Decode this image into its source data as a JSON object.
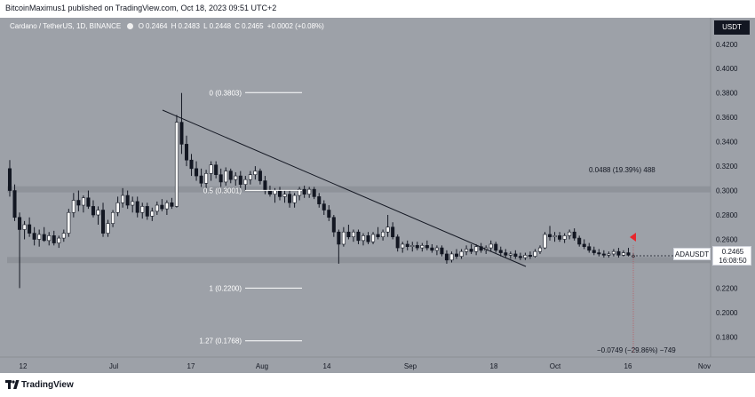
{
  "header": {
    "publish_text": "BitcoinMaximus1 published on TradingView.com, Oct 18, 2023 09:51 UTC+2"
  },
  "symbol": {
    "name": "Cardano / TetherUS, 1D, BINANCE",
    "o_label": "O",
    "o_value": "0.2464",
    "h_label": "H",
    "h_value": "0.2483",
    "l_label": "L",
    "l_value": "0.2448",
    "c_label": "C",
    "c_value": "0.2465",
    "change": "+0.0002 (+0.08%)"
  },
  "price_axis": {
    "currency": "USDT",
    "ticks": [
      "0.4200",
      "0.4000",
      "0.3800",
      "0.3600",
      "0.3400",
      "0.3200",
      "0.3000",
      "0.2800",
      "0.2600",
      "0.2200",
      "0.2000",
      "0.1800"
    ]
  },
  "time_axis": {
    "ticks": [
      "12",
      "Jul",
      "17",
      "Aug",
      "14",
      "Sep",
      "18",
      "Oct",
      "16",
      "Nov"
    ]
  },
  "fib": {
    "levels": [
      {
        "label": "0 (0.3803)",
        "price": 0.3803
      },
      {
        "label": "0.5 (0.3001)",
        "price": 0.3001
      },
      {
        "label": "1 (0.2200)",
        "price": 0.22
      },
      {
        "label": "1.27 (0.1768)",
        "price": 0.1768
      }
    ]
  },
  "measure": {
    "up_text": "0.0488 (19.39%) 488",
    "down_text": "−0.0749 (−29.86%) −749"
  },
  "current": {
    "symbol_label": "ADAUSDT",
    "price": "0.2465",
    "countdown": "16:08:50"
  },
  "footer": {
    "brand": "TradingView"
  },
  "colors": {
    "background": "#9da1a8",
    "zone": "#8d9198",
    "candle_up": "#ffffff",
    "candle_down": "#131722",
    "arrow": "#e8262c"
  },
  "chart_data": {
    "type": "candlestick",
    "ylim": [
      0.16,
      0.43
    ],
    "horizontal_zones": [
      {
        "low": 0.2985,
        "high": 0.3035
      },
      {
        "low": 0.2405,
        "high": 0.2455
      }
    ],
    "candles": [
      {
        "o": 0.318,
        "h": 0.325,
        "l": 0.295,
        "c": 0.3
      },
      {
        "o": 0.3,
        "h": 0.305,
        "l": 0.275,
        "c": 0.278
      },
      {
        "o": 0.278,
        "h": 0.282,
        "l": 0.22,
        "c": 0.268
      },
      {
        "o": 0.268,
        "h": 0.275,
        "l": 0.26,
        "c": 0.272
      },
      {
        "o": 0.272,
        "h": 0.278,
        "l": 0.262,
        "c": 0.265
      },
      {
        "o": 0.265,
        "h": 0.27,
        "l": 0.255,
        "c": 0.26
      },
      {
        "o": 0.26,
        "h": 0.268,
        "l": 0.254,
        "c": 0.264
      },
      {
        "o": 0.264,
        "h": 0.27,
        "l": 0.258,
        "c": 0.259
      },
      {
        "o": 0.259,
        "h": 0.266,
        "l": 0.255,
        "c": 0.263
      },
      {
        "o": 0.263,
        "h": 0.267,
        "l": 0.255,
        "c": 0.257
      },
      {
        "o": 0.257,
        "h": 0.263,
        "l": 0.253,
        "c": 0.261
      },
      {
        "o": 0.261,
        "h": 0.268,
        "l": 0.258,
        "c": 0.265
      },
      {
        "o": 0.265,
        "h": 0.285,
        "l": 0.262,
        "c": 0.282
      },
      {
        "o": 0.282,
        "h": 0.298,
        "l": 0.278,
        "c": 0.292
      },
      {
        "o": 0.292,
        "h": 0.3,
        "l": 0.283,
        "c": 0.288
      },
      {
        "o": 0.288,
        "h": 0.296,
        "l": 0.282,
        "c": 0.294
      },
      {
        "o": 0.294,
        "h": 0.3,
        "l": 0.285,
        "c": 0.287
      },
      {
        "o": 0.287,
        "h": 0.292,
        "l": 0.278,
        "c": 0.28
      },
      {
        "o": 0.28,
        "h": 0.287,
        "l": 0.272,
        "c": 0.284
      },
      {
        "o": 0.284,
        "h": 0.29,
        "l": 0.262,
        "c": 0.265
      },
      {
        "o": 0.265,
        "h": 0.276,
        "l": 0.262,
        "c": 0.273
      },
      {
        "o": 0.273,
        "h": 0.284,
        "l": 0.27,
        "c": 0.282
      },
      {
        "o": 0.282,
        "h": 0.295,
        "l": 0.279,
        "c": 0.29
      },
      {
        "o": 0.29,
        "h": 0.302,
        "l": 0.286,
        "c": 0.296
      },
      {
        "o": 0.296,
        "h": 0.3,
        "l": 0.285,
        "c": 0.288
      },
      {
        "o": 0.288,
        "h": 0.295,
        "l": 0.282,
        "c": 0.291
      },
      {
        "o": 0.291,
        "h": 0.295,
        "l": 0.278,
        "c": 0.282
      },
      {
        "o": 0.282,
        "h": 0.29,
        "l": 0.277,
        "c": 0.287
      },
      {
        "o": 0.287,
        "h": 0.29,
        "l": 0.276,
        "c": 0.279
      },
      {
        "o": 0.279,
        "h": 0.286,
        "l": 0.275,
        "c": 0.283
      },
      {
        "o": 0.283,
        "h": 0.291,
        "l": 0.28,
        "c": 0.288
      },
      {
        "o": 0.288,
        "h": 0.293,
        "l": 0.283,
        "c": 0.285
      },
      {
        "o": 0.285,
        "h": 0.292,
        "l": 0.28,
        "c": 0.29
      },
      {
        "o": 0.29,
        "h": 0.294,
        "l": 0.285,
        "c": 0.287
      },
      {
        "o": 0.287,
        "h": 0.362,
        "l": 0.286,
        "c": 0.356
      },
      {
        "o": 0.356,
        "h": 0.38,
        "l": 0.33,
        "c": 0.338
      },
      {
        "o": 0.338,
        "h": 0.345,
        "l": 0.32,
        "c": 0.325
      },
      {
        "o": 0.325,
        "h": 0.33,
        "l": 0.312,
        "c": 0.318
      },
      {
        "o": 0.318,
        "h": 0.324,
        "l": 0.308,
        "c": 0.312
      },
      {
        "o": 0.312,
        "h": 0.318,
        "l": 0.303,
        "c": 0.306
      },
      {
        "o": 0.306,
        "h": 0.317,
        "l": 0.302,
        "c": 0.314
      },
      {
        "o": 0.314,
        "h": 0.324,
        "l": 0.308,
        "c": 0.321
      },
      {
        "o": 0.321,
        "h": 0.324,
        "l": 0.31,
        "c": 0.313
      },
      {
        "o": 0.313,
        "h": 0.318,
        "l": 0.303,
        "c": 0.307
      },
      {
        "o": 0.307,
        "h": 0.319,
        "l": 0.304,
        "c": 0.316
      },
      {
        "o": 0.316,
        "h": 0.318,
        "l": 0.306,
        "c": 0.309
      },
      {
        "o": 0.309,
        "h": 0.315,
        "l": 0.304,
        "c": 0.312
      },
      {
        "o": 0.312,
        "h": 0.316,
        "l": 0.302,
        "c": 0.305
      },
      {
        "o": 0.305,
        "h": 0.312,
        "l": 0.3,
        "c": 0.309
      },
      {
        "o": 0.309,
        "h": 0.316,
        "l": 0.305,
        "c": 0.313
      },
      {
        "o": 0.313,
        "h": 0.32,
        "l": 0.309,
        "c": 0.316
      },
      {
        "o": 0.316,
        "h": 0.318,
        "l": 0.305,
        "c": 0.308
      },
      {
        "o": 0.308,
        "h": 0.312,
        "l": 0.297,
        "c": 0.3
      },
      {
        "o": 0.3,
        "h": 0.304,
        "l": 0.295,
        "c": 0.297
      },
      {
        "o": 0.297,
        "h": 0.302,
        "l": 0.29,
        "c": 0.3
      },
      {
        "o": 0.3,
        "h": 0.303,
        "l": 0.292,
        "c": 0.295
      },
      {
        "o": 0.295,
        "h": 0.3,
        "l": 0.29,
        "c": 0.297
      },
      {
        "o": 0.297,
        "h": 0.3,
        "l": 0.286,
        "c": 0.29
      },
      {
        "o": 0.29,
        "h": 0.298,
        "l": 0.286,
        "c": 0.296
      },
      {
        "o": 0.296,
        "h": 0.303,
        "l": 0.292,
        "c": 0.301
      },
      {
        "o": 0.301,
        "h": 0.304,
        "l": 0.294,
        "c": 0.297
      },
      {
        "o": 0.297,
        "h": 0.303,
        "l": 0.294,
        "c": 0.301
      },
      {
        "o": 0.301,
        "h": 0.303,
        "l": 0.293,
        "c": 0.295
      },
      {
        "o": 0.295,
        "h": 0.298,
        "l": 0.286,
        "c": 0.289
      },
      {
        "o": 0.289,
        "h": 0.292,
        "l": 0.28,
        "c": 0.284
      },
      {
        "o": 0.284,
        "h": 0.288,
        "l": 0.275,
        "c": 0.278
      },
      {
        "o": 0.278,
        "h": 0.28,
        "l": 0.262,
        "c": 0.266
      },
      {
        "o": 0.266,
        "h": 0.268,
        "l": 0.24,
        "c": 0.256
      },
      {
        "o": 0.256,
        "h": 0.27,
        "l": 0.254,
        "c": 0.266
      },
      {
        "o": 0.266,
        "h": 0.272,
        "l": 0.26,
        "c": 0.262
      },
      {
        "o": 0.262,
        "h": 0.268,
        "l": 0.258,
        "c": 0.266
      },
      {
        "o": 0.266,
        "h": 0.268,
        "l": 0.256,
        "c": 0.259
      },
      {
        "o": 0.259,
        "h": 0.265,
        "l": 0.255,
        "c": 0.263
      },
      {
        "o": 0.263,
        "h": 0.266,
        "l": 0.256,
        "c": 0.258
      },
      {
        "o": 0.258,
        "h": 0.266,
        "l": 0.256,
        "c": 0.264
      },
      {
        "o": 0.264,
        "h": 0.27,
        "l": 0.26,
        "c": 0.262
      },
      {
        "o": 0.262,
        "h": 0.268,
        "l": 0.259,
        "c": 0.266
      },
      {
        "o": 0.266,
        "h": 0.28,
        "l": 0.262,
        "c": 0.27
      },
      {
        "o": 0.27,
        "h": 0.274,
        "l": 0.26,
        "c": 0.262
      },
      {
        "o": 0.262,
        "h": 0.264,
        "l": 0.25,
        "c": 0.253
      },
      {
        "o": 0.253,
        "h": 0.258,
        "l": 0.249,
        "c": 0.256
      },
      {
        "o": 0.256,
        "h": 0.259,
        "l": 0.251,
        "c": 0.254
      },
      {
        "o": 0.254,
        "h": 0.258,
        "l": 0.25,
        "c": 0.255
      },
      {
        "o": 0.255,
        "h": 0.258,
        "l": 0.251,
        "c": 0.253
      },
      {
        "o": 0.253,
        "h": 0.257,
        "l": 0.25,
        "c": 0.255
      },
      {
        "o": 0.255,
        "h": 0.259,
        "l": 0.251,
        "c": 0.253
      },
      {
        "o": 0.253,
        "h": 0.256,
        "l": 0.249,
        "c": 0.251
      },
      {
        "o": 0.251,
        "h": 0.255,
        "l": 0.247,
        "c": 0.253
      },
      {
        "o": 0.253,
        "h": 0.255,
        "l": 0.246,
        "c": 0.248
      },
      {
        "o": 0.248,
        "h": 0.251,
        "l": 0.24,
        "c": 0.243
      },
      {
        "o": 0.243,
        "h": 0.25,
        "l": 0.241,
        "c": 0.248
      },
      {
        "o": 0.248,
        "h": 0.252,
        "l": 0.244,
        "c": 0.246
      },
      {
        "o": 0.246,
        "h": 0.252,
        "l": 0.244,
        "c": 0.25
      },
      {
        "o": 0.25,
        "h": 0.255,
        "l": 0.247,
        "c": 0.252
      },
      {
        "o": 0.252,
        "h": 0.256,
        "l": 0.248,
        "c": 0.25
      },
      {
        "o": 0.25,
        "h": 0.256,
        "l": 0.247,
        "c": 0.254
      },
      {
        "o": 0.254,
        "h": 0.257,
        "l": 0.249,
        "c": 0.251
      },
      {
        "o": 0.251,
        "h": 0.255,
        "l": 0.248,
        "c": 0.253
      },
      {
        "o": 0.253,
        "h": 0.259,
        "l": 0.25,
        "c": 0.256
      },
      {
        "o": 0.256,
        "h": 0.258,
        "l": 0.249,
        "c": 0.251
      },
      {
        "o": 0.251,
        "h": 0.254,
        "l": 0.246,
        "c": 0.249
      },
      {
        "o": 0.249,
        "h": 0.252,
        "l": 0.245,
        "c": 0.247
      },
      {
        "o": 0.247,
        "h": 0.25,
        "l": 0.244,
        "c": 0.248
      },
      {
        "o": 0.248,
        "h": 0.251,
        "l": 0.244,
        "c": 0.246
      },
      {
        "o": 0.246,
        "h": 0.249,
        "l": 0.243,
        "c": 0.245
      },
      {
        "o": 0.245,
        "h": 0.249,
        "l": 0.243,
        "c": 0.247
      },
      {
        "o": 0.247,
        "h": 0.25,
        "l": 0.244,
        "c": 0.246
      },
      {
        "o": 0.246,
        "h": 0.252,
        "l": 0.245,
        "c": 0.25
      },
      {
        "o": 0.25,
        "h": 0.255,
        "l": 0.248,
        "c": 0.253
      },
      {
        "o": 0.253,
        "h": 0.266,
        "l": 0.252,
        "c": 0.264
      },
      {
        "o": 0.264,
        "h": 0.271,
        "l": 0.259,
        "c": 0.262
      },
      {
        "o": 0.262,
        "h": 0.266,
        "l": 0.258,
        "c": 0.263
      },
      {
        "o": 0.263,
        "h": 0.266,
        "l": 0.258,
        "c": 0.26
      },
      {
        "o": 0.26,
        "h": 0.265,
        "l": 0.257,
        "c": 0.263
      },
      {
        "o": 0.263,
        "h": 0.268,
        "l": 0.26,
        "c": 0.266
      },
      {
        "o": 0.266,
        "h": 0.269,
        "l": 0.259,
        "c": 0.261
      },
      {
        "o": 0.261,
        "h": 0.263,
        "l": 0.254,
        "c": 0.256
      },
      {
        "o": 0.256,
        "h": 0.26,
        "l": 0.252,
        "c": 0.254
      },
      {
        "o": 0.254,
        "h": 0.257,
        "l": 0.249,
        "c": 0.251
      },
      {
        "o": 0.251,
        "h": 0.254,
        "l": 0.247,
        "c": 0.249
      },
      {
        "o": 0.249,
        "h": 0.252,
        "l": 0.246,
        "c": 0.248
      },
      {
        "o": 0.248,
        "h": 0.251,
        "l": 0.245,
        "c": 0.247
      },
      {
        "o": 0.247,
        "h": 0.25,
        "l": 0.245,
        "c": 0.248
      },
      {
        "o": 0.248,
        "h": 0.252,
        "l": 0.246,
        "c": 0.25
      },
      {
        "o": 0.25,
        "h": 0.253,
        "l": 0.245,
        "c": 0.247
      },
      {
        "o": 0.247,
        "h": 0.251,
        "l": 0.246,
        "c": 0.249
      },
      {
        "o": 0.249,
        "h": 0.253,
        "l": 0.246,
        "c": 0.247
      },
      {
        "o": 0.2464,
        "h": 0.2483,
        "l": 0.2448,
        "c": 0.2465
      }
    ]
  }
}
